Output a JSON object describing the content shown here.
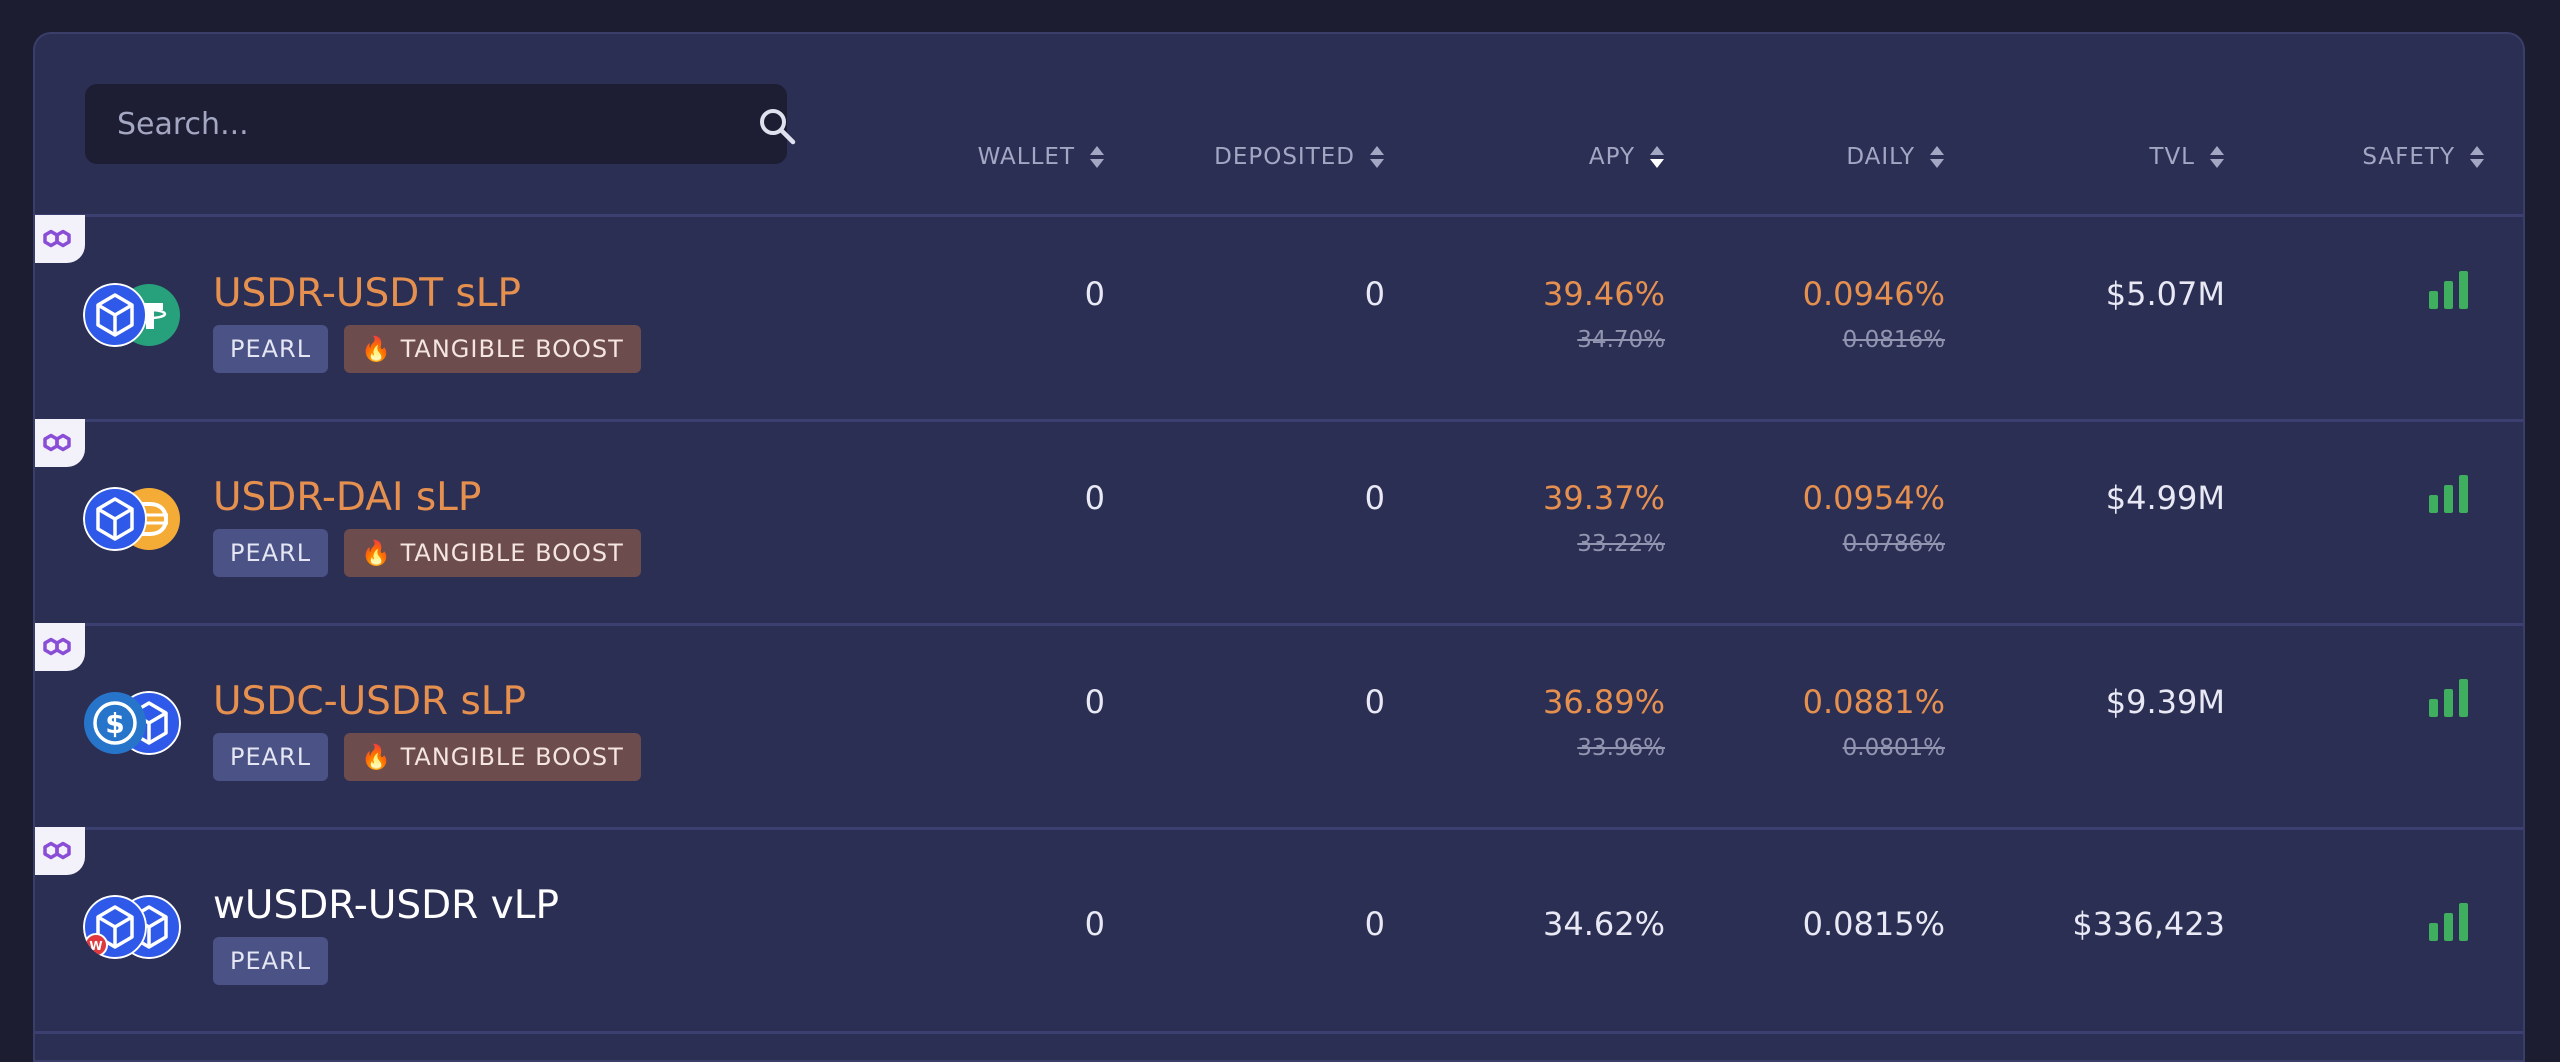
{
  "search": {
    "placeholder": "Search..."
  },
  "columns": {
    "wallet": "WALLET",
    "deposited": "DEPOSITED",
    "apy": "APY",
    "daily": "DAILY",
    "tvl": "TVL",
    "safety": "SAFETY"
  },
  "rows": [
    {
      "name": "USDR-USDT sLP",
      "badges": [
        "PEARL",
        "🔥 TANGIBLE BOOST"
      ],
      "wallet": "0",
      "deposited": "0",
      "apy": "39.46%",
      "apy_old": "34.70%",
      "daily": "0.0946%",
      "daily_old": "0.0816%",
      "tvl": "$5.07M",
      "tokens": [
        "usdr-icon",
        "usdt-icon"
      ]
    },
    {
      "name": "USDR-DAI sLP",
      "badges": [
        "PEARL",
        "🔥 TANGIBLE BOOST"
      ],
      "wallet": "0",
      "deposited": "0",
      "apy": "39.37%",
      "apy_old": "33.22%",
      "daily": "0.0954%",
      "daily_old": "0.0786%",
      "tvl": "$4.99M",
      "tokens": [
        "usdr-icon",
        "dai-icon"
      ]
    },
    {
      "name": "USDC-USDR sLP",
      "badges": [
        "PEARL",
        "🔥 TANGIBLE BOOST"
      ],
      "wallet": "0",
      "deposited": "0",
      "apy": "36.89%",
      "apy_old": "33.96%",
      "daily": "0.0881%",
      "daily_old": "0.0801%",
      "tvl": "$9.39M",
      "tokens": [
        "usdc-icon",
        "usdr-icon"
      ]
    },
    {
      "name": "wUSDR-USDR vLP",
      "badges": [
        "PEARL"
      ],
      "wallet": "0",
      "deposited": "0",
      "apy": "34.62%",
      "daily": "0.0815%",
      "tvl": "$336,423",
      "tokens": [
        "wusdr-icon",
        "usdr-icon"
      ]
    }
  ],
  "colors": {
    "accent_orange": "#e6904f",
    "safety_green": "#3fae5e",
    "panel": "#2c2f54",
    "background": "#1c1d30"
  }
}
